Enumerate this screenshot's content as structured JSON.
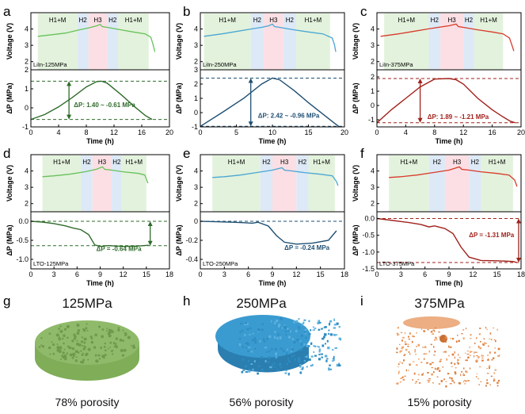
{
  "colors": {
    "phase_H1M": "#e3f2dc",
    "phase_H2": "#dde9f6",
    "phase_H3": "#fbdfe4",
    "green_v": "#66c25a",
    "green_p": "#2f6b2a",
    "blue_v": "#4aa6d3",
    "blue_p": "#1f4f73",
    "red_v": "#d93a2b",
    "red_p": "#a1221c",
    "green_3d": "#8fba6a",
    "blue_3d": "#3a9bd1",
    "orange_3d": "#e08a4c"
  },
  "chart_data": [
    {
      "panel": "a",
      "type": "line",
      "theme": "green",
      "xlabel": "Time (h)",
      "xlim": [
        0,
        20
      ],
      "xticks": [
        0,
        4,
        8,
        12,
        16,
        20
      ],
      "voltage": {
        "ylabel": "Voltage (V)",
        "ylim": [
          1.5,
          5
        ],
        "yticks": [
          2,
          3,
          4
        ],
        "x": [
          1.0,
          3,
          5,
          7,
          8.5,
          9.5,
          10.0,
          10.3,
          11,
          13,
          15,
          16.5,
          17.3,
          17.6,
          17.9
        ],
        "y": [
          3.55,
          3.65,
          3.75,
          3.95,
          4.08,
          4.2,
          4.28,
          4.15,
          4.1,
          3.95,
          3.8,
          3.7,
          3.5,
          3.1,
          2.6
        ]
      },
      "pressure": {
        "ylabel": "ΔP (MPa)",
        "ylim": [
          -1,
          2
        ],
        "yticks": [
          -1,
          0,
          1,
          2
        ],
        "x": [
          0,
          2,
          4,
          6,
          8,
          9.5,
          10.2,
          11,
          13,
          15,
          16.5,
          17.5
        ],
        "y": [
          -0.61,
          -0.35,
          0.05,
          0.55,
          1.1,
          1.38,
          1.4,
          1.3,
          0.7,
          0.05,
          -0.4,
          -0.61
        ],
        "ref_lines": [
          1.4,
          -0.61
        ],
        "arrow_x": 5.5,
        "annotation": "ΔP: 1.40 ~ -0.61 MPa"
      },
      "phases": [
        {
          "label": "H1+M",
          "start": 1.0,
          "end": 6.7
        },
        {
          "label": "H2",
          "start": 6.7,
          "end": 8.3
        },
        {
          "label": "H3",
          "start": 8.3,
          "end": 11.0
        },
        {
          "label": "H2",
          "start": 11.0,
          "end": 12.6
        },
        {
          "label": "H1+M",
          "start": 12.6,
          "end": 17.0
        }
      ],
      "sample_label": "LiIn-125MPa"
    },
    {
      "panel": "b",
      "type": "line",
      "theme": "blue",
      "xlabel": "Time (h)",
      "xlim": [
        0,
        20
      ],
      "xticks": [
        0,
        5,
        10,
        15,
        20
      ],
      "voltage": {
        "ylabel": "Voltage (V)",
        "ylim": [
          1.5,
          5
        ],
        "yticks": [
          2,
          3,
          4
        ],
        "x": [
          0.5,
          3,
          5,
          7,
          8.5,
          9.5,
          10.0,
          10.3,
          11,
          13,
          15,
          17,
          18.3,
          18.6,
          18.8
        ],
        "y": [
          3.55,
          3.7,
          3.85,
          4.0,
          4.1,
          4.2,
          4.3,
          4.15,
          4.1,
          3.95,
          3.82,
          3.7,
          3.45,
          3.05,
          2.6
        ]
      },
      "pressure": {
        "ylabel": "ΔP (MPa)",
        "ylim": [
          -1,
          3
        ],
        "yticks": [
          -1,
          0,
          1,
          2,
          3
        ],
        "x": [
          0,
          3,
          6,
          8.5,
          10,
          11,
          13,
          15,
          17,
          18.5,
          19.2
        ],
        "y": [
          -0.96,
          0.0,
          1.0,
          2.0,
          2.42,
          2.3,
          1.55,
          0.7,
          -0.1,
          -0.7,
          -0.96
        ],
        "ref_lines": [
          2.42,
          -0.96
        ],
        "arrow_x": 7.0,
        "annotation": "ΔP: 2.42 ~ -0.96 MPa"
      },
      "phases": [
        {
          "label": "H1+M",
          "start": 0.5,
          "end": 7.0
        },
        {
          "label": "H2",
          "start": 7.0,
          "end": 8.8
        },
        {
          "label": "H3",
          "start": 8.8,
          "end": 11.5
        },
        {
          "label": "H2",
          "start": 11.5,
          "end": 13.3
        },
        {
          "label": "H1+M",
          "start": 13.3,
          "end": 18.0
        }
      ],
      "sample_label": "LiIn-250MPa"
    },
    {
      "panel": "c",
      "type": "line",
      "theme": "red",
      "xlabel": "Time (h)",
      "xlim": [
        0,
        20
      ],
      "xticks": [
        0,
        4,
        8,
        12,
        16,
        20
      ],
      "voltage": {
        "ylabel": "Voltage (V)",
        "ylim": [
          1.5,
          5
        ],
        "yticks": [
          2,
          3,
          4
        ],
        "x": [
          0.5,
          3,
          5,
          7,
          8.5,
          10,
          11.0,
          11.3,
          12,
          14,
          16,
          17.5,
          18.4,
          18.7,
          19.0
        ],
        "y": [
          3.55,
          3.7,
          3.85,
          4.0,
          4.1,
          4.2,
          4.3,
          4.15,
          4.1,
          3.95,
          3.82,
          3.7,
          3.45,
          3.05,
          2.65
        ]
      },
      "pressure": {
        "ylabel": "ΔP (MPa)",
        "ylim": [
          -1.5,
          2.5
        ],
        "yticks": [
          -1,
          0,
          1,
          2
        ],
        "x": [
          0,
          2,
          4,
          6,
          8,
          10,
          11,
          12,
          14,
          16,
          17.5,
          18.5,
          19.2
        ],
        "y": [
          -1.21,
          -0.3,
          0.5,
          1.3,
          1.85,
          1.89,
          1.8,
          1.5,
          0.5,
          -0.3,
          -0.8,
          -1.1,
          -1.21
        ],
        "ref_lines": [
          1.89,
          -1.21
        ],
        "arrow_x": 6.0,
        "annotation": "ΔP: 1.89 ~ -1.21 MPa"
      },
      "phases": [
        {
          "label": "H1+M",
          "start": 1.0,
          "end": 7.2
        },
        {
          "label": "H2",
          "start": 7.2,
          "end": 8.8
        },
        {
          "label": "H3",
          "start": 8.8,
          "end": 12.0
        },
        {
          "label": "H2",
          "start": 12.0,
          "end": 13.5
        },
        {
          "label": "H1+M",
          "start": 13.5,
          "end": 17.5
        }
      ],
      "sample_label": "LiIn-375MPa"
    },
    {
      "panel": "d",
      "type": "line",
      "theme": "green",
      "xlabel": "Time (h)",
      "xlim": [
        0,
        18
      ],
      "xticks": [
        0,
        3,
        6,
        9,
        12,
        15,
        18
      ],
      "voltage": {
        "ylabel": "Voltage (V)",
        "ylim": [
          1.5,
          5
        ],
        "yticks": [
          2,
          3,
          4
        ],
        "x": [
          1.5,
          3,
          5,
          7,
          8.5,
          9.3,
          9.6,
          10.5,
          12,
          14,
          14.8,
          15.2
        ],
        "y": [
          3.65,
          3.7,
          3.8,
          3.95,
          4.1,
          4.25,
          4.1,
          4.05,
          3.95,
          3.85,
          3.75,
          3.25
        ]
      },
      "pressure": {
        "ylabel": "ΔP (MPa)",
        "ylim": [
          -1.25,
          0.25
        ],
        "yticks": [
          -1.0,
          -0.5,
          0.0
        ],
        "x": [
          0,
          1.5,
          3,
          4.5,
          5.5,
          6.5,
          7.5,
          8.3,
          9,
          10,
          12,
          14,
          15.3
        ],
        "y": [
          0,
          -0.02,
          -0.06,
          -0.12,
          -0.18,
          -0.22,
          -0.35,
          -0.62,
          -0.66,
          -0.64,
          -0.66,
          -0.65,
          -0.63
        ],
        "ref_lines": [
          0,
          -0.64
        ],
        "arrow_x": 15.5,
        "annotation": "ΔP = -0.64 MPa"
      },
      "phases": [
        {
          "label": "H1+M",
          "start": 1.5,
          "end": 6.5
        },
        {
          "label": "H2",
          "start": 6.5,
          "end": 8.0
        },
        {
          "label": "H3",
          "start": 8.0,
          "end": 10.5
        },
        {
          "label": "H2",
          "start": 10.5,
          "end": 11.8
        },
        {
          "label": "H1+M",
          "start": 11.8,
          "end": 15.0
        }
      ],
      "sample_label": "LTO-125MPa"
    },
    {
      "panel": "e",
      "type": "line",
      "theme": "blue",
      "xlabel": "Time (h)",
      "xlim": [
        0,
        18
      ],
      "xticks": [
        0,
        3,
        6,
        9,
        12,
        15,
        18
      ],
      "voltage": {
        "ylabel": "Voltage (V)",
        "ylim": [
          1.5,
          5
        ],
        "yticks": [
          2,
          3,
          4
        ],
        "x": [
          1.5,
          3,
          5,
          7,
          9,
          10.2,
          10.5,
          11.5,
          13,
          15,
          16.5,
          17.0,
          17.2
        ],
        "y": [
          3.6,
          3.65,
          3.75,
          3.9,
          4.05,
          4.2,
          4.05,
          4.0,
          3.9,
          3.8,
          3.7,
          3.35,
          3.1
        ]
      },
      "pressure": {
        "ylabel": "ΔP (MPa)",
        "ylim": [
          -0.5,
          0.1
        ],
        "yticks": [
          -0.4,
          -0.2,
          0.0
        ],
        "x": [
          0,
          2,
          4,
          5.5,
          6.5,
          7.2,
          8.5,
          9.5,
          10.5,
          12,
          14,
          16,
          17
        ],
        "y": [
          0,
          -0.005,
          -0.01,
          -0.015,
          -0.02,
          -0.01,
          -0.05,
          -0.15,
          -0.22,
          -0.24,
          -0.23,
          -0.2,
          -0.1
        ],
        "ref_lines": [
          0
        ],
        "annotation": "ΔP = -0.24 MPa"
      },
      "phases": [
        {
          "label": "H1+M",
          "start": 1.5,
          "end": 7.5
        },
        {
          "label": "H2",
          "start": 7.5,
          "end": 9.0
        },
        {
          "label": "H3",
          "start": 9.0,
          "end": 12.0
        },
        {
          "label": "H2",
          "start": 12.0,
          "end": 13.5
        },
        {
          "label": "H1+M",
          "start": 13.5,
          "end": 16.8
        }
      ],
      "sample_label": "LTO-250MPa"
    },
    {
      "panel": "f",
      "type": "line",
      "theme": "red",
      "xlabel": "Time (h)",
      "xlim": [
        0,
        18
      ],
      "xticks": [
        0,
        3,
        6,
        9,
        12,
        15,
        18
      ],
      "voltage": {
        "ylabel": "Voltage (V)",
        "ylim": [
          1.5,
          5
        ],
        "yticks": [
          2,
          3,
          4
        ],
        "x": [
          1.5,
          3,
          5,
          7,
          9,
          10.3,
          10.6,
          11.5,
          13,
          15,
          16.5,
          17.2,
          17.5
        ],
        "y": [
          3.6,
          3.65,
          3.75,
          3.9,
          4.05,
          4.25,
          4.1,
          4.05,
          3.95,
          3.85,
          3.75,
          3.45,
          3.05
        ]
      },
      "pressure": {
        "ylabel": "ΔP (MPa)",
        "ylim": [
          -1.5,
          0.2
        ],
        "yticks": [
          -1.5,
          -1.0,
          -0.5,
          0.0
        ],
        "x": [
          0,
          2,
          4,
          5.5,
          6.5,
          7.2,
          8.5,
          9.5,
          10.5,
          11.5,
          13,
          15,
          17,
          17.5
        ],
        "y": [
          0,
          -0.06,
          -0.12,
          -0.18,
          -0.25,
          -0.22,
          -0.3,
          -0.45,
          -0.85,
          -1.15,
          -1.25,
          -1.26,
          -1.28,
          -1.31
        ],
        "ref_lines": [
          0,
          -1.31
        ],
        "arrow_x": 17.7,
        "annotation": "ΔP = -1.31 MPa"
      },
      "phases": [
        {
          "label": "H1+M",
          "start": 1.5,
          "end": 6.5
        },
        {
          "label": "H2",
          "start": 6.5,
          "end": 8.5
        },
        {
          "label": "H3",
          "start": 8.5,
          "end": 11.5
        },
        {
          "label": "H2",
          "start": 11.5,
          "end": 13.0
        },
        {
          "label": "H1+M",
          "start": 13.0,
          "end": 17.0
        }
      ],
      "sample_label": "LTO-375MPa"
    }
  ],
  "tomography": [
    {
      "panel": "g",
      "title": "125MPa",
      "caption": "78% porosity",
      "porosity_pct": 78
    },
    {
      "panel": "h",
      "title": "250MPa",
      "caption": "56% porosity",
      "porosity_pct": 56
    },
    {
      "panel": "i",
      "title": "375MPa",
      "caption": "15% porosity",
      "porosity_pct": 15
    }
  ]
}
